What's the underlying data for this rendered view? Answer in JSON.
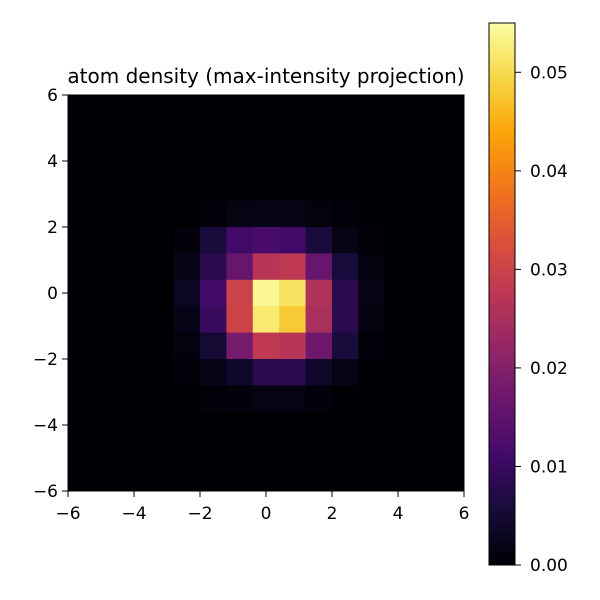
{
  "chart_data": {
    "type": "heatmap",
    "title": "atom density (max-intensity projection)",
    "xlabel": "",
    "ylabel": "",
    "xlim": [
      -6,
      6
    ],
    "ylim": [
      -6,
      6
    ],
    "grid": false,
    "colormap": "inferno",
    "x_ticks": [
      "−6",
      "−4",
      "−2",
      "0",
      "2",
      "4",
      "6"
    ],
    "y_ticks": [
      "6",
      "4",
      "2",
      "0",
      "−2",
      "−4",
      "−6"
    ],
    "colorbar": {
      "range": [
        0,
        0.055
      ],
      "ticks": [
        "0.00",
        "0.01",
        "0.02",
        "0.03",
        "0.04",
        "0.05"
      ],
      "tick_values": [
        0,
        0.01,
        0.02,
        0.03,
        0.04,
        0.05
      ]
    },
    "grid_size": 15,
    "cell_width": 0.8,
    "x_centers": [
      -5.6,
      -4.8,
      -4.0,
      -3.2,
      -2.4,
      -1.6,
      -0.8,
      0.0,
      0.8,
      1.6,
      2.4,
      3.2,
      4.0,
      4.8,
      5.6
    ],
    "y_centers": [
      5.6,
      4.8,
      4.0,
      3.2,
      2.4,
      1.6,
      0.8,
      0.0,
      -0.8,
      -1.6,
      -2.4,
      -3.2,
      -4.0,
      -4.8,
      -5.6
    ],
    "values": [
      [
        0,
        0,
        0,
        0,
        0,
        0,
        0,
        0,
        0,
        0,
        0,
        0,
        0,
        0,
        0
      ],
      [
        0,
        0,
        0,
        0,
        0,
        0,
        0,
        0,
        0,
        0,
        0,
        0,
        0,
        0,
        0
      ],
      [
        0,
        0,
        0,
        0,
        0,
        0,
        0,
        0,
        0,
        0,
        0,
        0,
        0,
        0,
        0
      ],
      [
        0,
        0,
        0,
        0,
        0,
        0,
        0,
        0,
        0,
        0,
        0,
        0,
        0,
        0,
        0
      ],
      [
        0,
        0,
        0,
        0,
        0,
        0.0005,
        0.0015,
        0.002,
        0.002,
        0.001,
        0.0005,
        0,
        0,
        0,
        0
      ],
      [
        0,
        0,
        0,
        0,
        0.0008,
        0.006,
        0.011,
        0.012,
        0.011,
        0.006,
        0.0015,
        0.0003,
        0,
        0,
        0
      ],
      [
        0,
        0,
        0,
        0,
        0.002,
        0.008,
        0.016,
        0.027,
        0.028,
        0.016,
        0.006,
        0.001,
        0,
        0,
        0
      ],
      [
        0,
        0,
        0,
        0,
        0.003,
        0.011,
        0.03,
        0.054,
        0.051,
        0.026,
        0.008,
        0.0015,
        0,
        0,
        0
      ],
      [
        0,
        0,
        0,
        0,
        0.002,
        0.01,
        0.03,
        0.052,
        0.048,
        0.025,
        0.008,
        0.001,
        0,
        0,
        0
      ],
      [
        0,
        0,
        0,
        0,
        0.001,
        0.005,
        0.018,
        0.028,
        0.027,
        0.017,
        0.006,
        0.0005,
        0,
        0,
        0
      ],
      [
        0,
        0,
        0,
        0,
        0.0005,
        0.002,
        0.004,
        0.008,
        0.008,
        0.004,
        0.0015,
        0,
        0,
        0,
        0
      ],
      [
        0,
        0,
        0,
        0,
        0,
        0.0005,
        0.0008,
        0.0015,
        0.0015,
        0.0008,
        0,
        0,
        0,
        0,
        0
      ],
      [
        0,
        0,
        0,
        0,
        0,
        0,
        0,
        0,
        0,
        0,
        0,
        0,
        0,
        0,
        0
      ],
      [
        0,
        0,
        0,
        0,
        0,
        0,
        0,
        0,
        0,
        0,
        0,
        0,
        0,
        0,
        0
      ],
      [
        0,
        0,
        0,
        0,
        0,
        0,
        0,
        0,
        0,
        0,
        0,
        0,
        0,
        0,
        0
      ]
    ]
  }
}
